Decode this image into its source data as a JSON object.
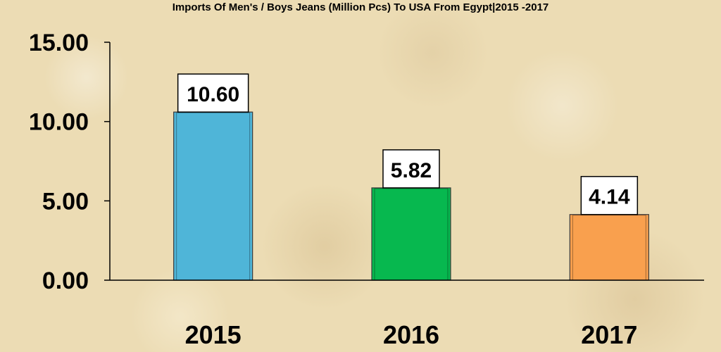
{
  "chart_data": {
    "type": "bar",
    "title": "Imports Of Men's / Boys Jeans (Million Pcs) To USA From Egypt|2015 -2017",
    "categories": [
      "2015",
      "2016",
      "2017"
    ],
    "values": [
      10.6,
      5.82,
      4.14
    ],
    "data_labels": [
      "10.60",
      "5.82",
      "4.14"
    ],
    "colors": [
      "#4fb5d8",
      "#07b84f",
      "#f9a04e"
    ],
    "ylim": [
      0,
      15
    ],
    "yticks": [
      0,
      5,
      10,
      15
    ],
    "ytick_labels": [
      "0.00",
      "5.00",
      "10.00",
      "15.00"
    ],
    "grid": false,
    "legend": "none"
  }
}
